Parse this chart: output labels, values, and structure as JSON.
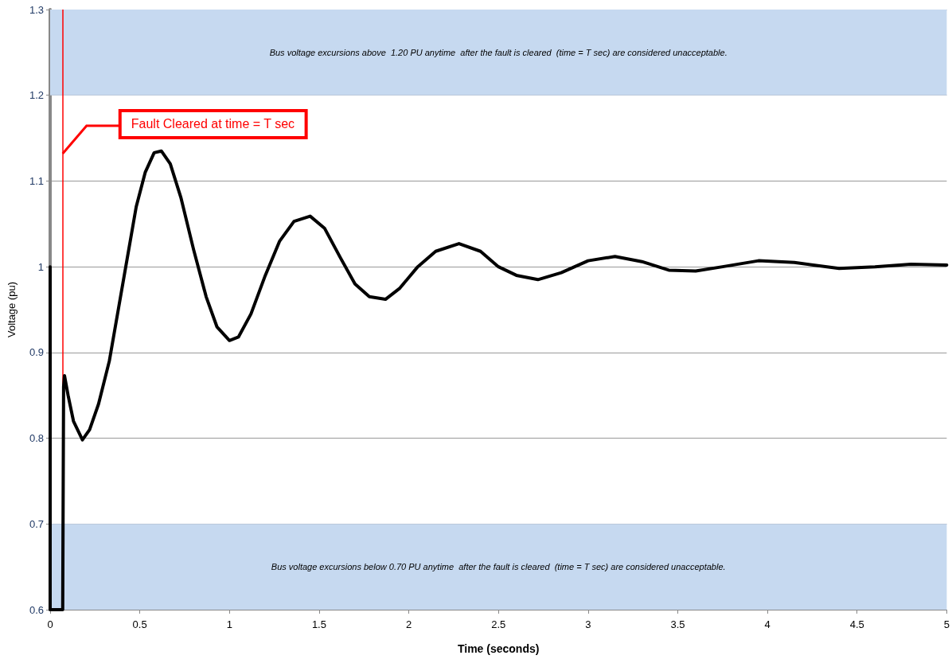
{
  "chart_data": {
    "type": "line",
    "xlabel": "Time (seconds)",
    "ylabel": "Voltage (pu)",
    "xlim": [
      0,
      5
    ],
    "xticks": [
      0,
      0.5,
      1,
      1.5,
      2,
      2.5,
      3,
      3.5,
      4,
      4.5,
      5
    ],
    "ylim": [
      0.6,
      1.3
    ],
    "yticks": [
      0.6,
      0.7,
      0.8,
      0.9,
      1,
      1.1,
      1.2,
      1.3
    ],
    "grid": "y",
    "marker": "none",
    "line_style": "solid",
    "series": [
      {
        "color": "#000000",
        "x": [
          0,
          0,
          0.07,
          0.075,
          0.08,
          0.1,
          0.13,
          0.18,
          0.22,
          0.27,
          0.33,
          0.38,
          0.43,
          0.48,
          0.53,
          0.58,
          0.62,
          0.67,
          0.73,
          0.8,
          0.87,
          0.93,
          1.0,
          1.05,
          1.12,
          1.2,
          1.28,
          1.36,
          1.45,
          1.53,
          1.62,
          1.7,
          1.78,
          1.87,
          1.95,
          2.05,
          2.15,
          2.28,
          2.4,
          2.5,
          2.6,
          2.72,
          2.85,
          3.0,
          3.15,
          3.3,
          3.45,
          3.6,
          3.75,
          3.95,
          4.15,
          4.4,
          4.6,
          4.8,
          5.0
        ],
        "values": [
          1.0,
          0.6,
          0.6,
          0.86,
          0.873,
          0.85,
          0.82,
          0.798,
          0.81,
          0.84,
          0.89,
          0.95,
          1.01,
          1.07,
          1.11,
          1.133,
          1.135,
          1.12,
          1.08,
          1.02,
          0.965,
          0.93,
          0.914,
          0.918,
          0.945,
          0.99,
          1.03,
          1.053,
          1.059,
          1.045,
          1.01,
          0.98,
          0.965,
          0.962,
          0.975,
          1.0,
          1.018,
          1.027,
          1.018,
          1.0,
          0.99,
          0.985,
          0.993,
          1.007,
          1.012,
          1.006,
          0.996,
          0.995,
          1.0,
          1.007,
          1.005,
          0.998,
          1.0,
          1.003,
          1.002
        ]
      }
    ],
    "bands": [
      {
        "axis": "y",
        "from": 1.2,
        "to": 1.3,
        "color": "#c6d9f0",
        "label": "Bus voltage excursions above  1.20 PU anytime  after the fault is cleared  (time = T sec) are considered unacceptable."
      },
      {
        "axis": "y",
        "from": 0.6,
        "to": 0.7,
        "color": "#c6d9f0",
        "label": "Bus voltage excursions below 0.70 PU anytime  after the fault is cleared  (time = T sec) are considered unacceptable."
      }
    ],
    "ref_lines": [
      {
        "axis": "x",
        "value": 0.07,
        "color": "#ff0000",
        "line_style": "solid",
        "label": "Fault Cleared at time = T sec"
      }
    ]
  }
}
